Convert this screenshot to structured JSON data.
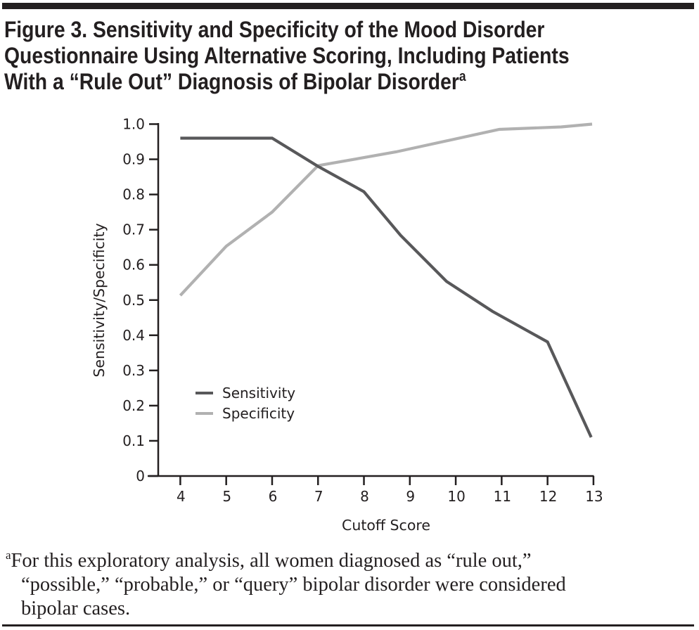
{
  "figure": {
    "title_lines": [
      "Figure 3. Sensitivity and Specificity of the Mood Disorder",
      "Questionnaire Using Alternative Scoring, Including Patients",
      "With a “Rule Out” Diagnosis of Bipolar Disorder"
    ],
    "title_footnote_marker": "a",
    "footnote_marker": "a",
    "footnote_lines": [
      "For this exploratory analysis, all women diagnosed as “rule out,”",
      "“possible,” “probable,” or “query” bipolar disorder were considered",
      "bipolar cases."
    ]
  },
  "chart_data": {
    "type": "line",
    "title": "Sensitivity and Specificity of the Mood Disorder Questionnaire Using Alternative Scoring, Including Patients With a “Rule Out” Diagnosis of Bipolar Disorder",
    "xlabel": "Cutoff Score",
    "ylabel": "Sensitivity/Specificity",
    "xlim": [
      3.5,
      13
    ],
    "ylim": [
      0,
      1.0
    ],
    "x_ticks": [
      4,
      5,
      6,
      7,
      8,
      9,
      10,
      11,
      12,
      13
    ],
    "x_tick_labels": [
      "4",
      "5",
      "6",
      "7",
      "8",
      "9",
      "10",
      "11",
      "12",
      "13"
    ],
    "y_ticks": [
      0,
      0.1,
      0.2,
      0.3,
      0.4,
      0.5,
      0.6,
      0.7,
      0.8,
      0.9,
      1.0
    ],
    "y_tick_labels": [
      "0",
      "0.1",
      "0.2",
      "0.3",
      "0.4",
      "0.5",
      "0.6",
      "0.7",
      "0.8",
      "0.9",
      "1.0"
    ],
    "grid": false,
    "legend_position": "lower-left",
    "series": [
      {
        "name": "Sensitivity",
        "color": "#58585a",
        "points": [
          [
            4,
            0.96
          ],
          [
            6,
            0.96
          ],
          [
            7,
            0.88
          ],
          [
            8,
            0.808
          ],
          [
            8.8,
            0.684
          ],
          [
            9.8,
            0.553
          ],
          [
            10.8,
            0.468
          ],
          [
            12,
            0.381
          ],
          [
            12.95,
            0.11
          ]
        ]
      },
      {
        "name": "Specificity",
        "color": "#b1b1b1",
        "points": [
          [
            4,
            0.513
          ],
          [
            5,
            0.653
          ],
          [
            6,
            0.75
          ],
          [
            7,
            0.882
          ],
          [
            8.7,
            0.921
          ],
          [
            10.95,
            0.985
          ],
          [
            12.3,
            0.992
          ],
          [
            12.97,
            1.0
          ]
        ]
      }
    ]
  }
}
